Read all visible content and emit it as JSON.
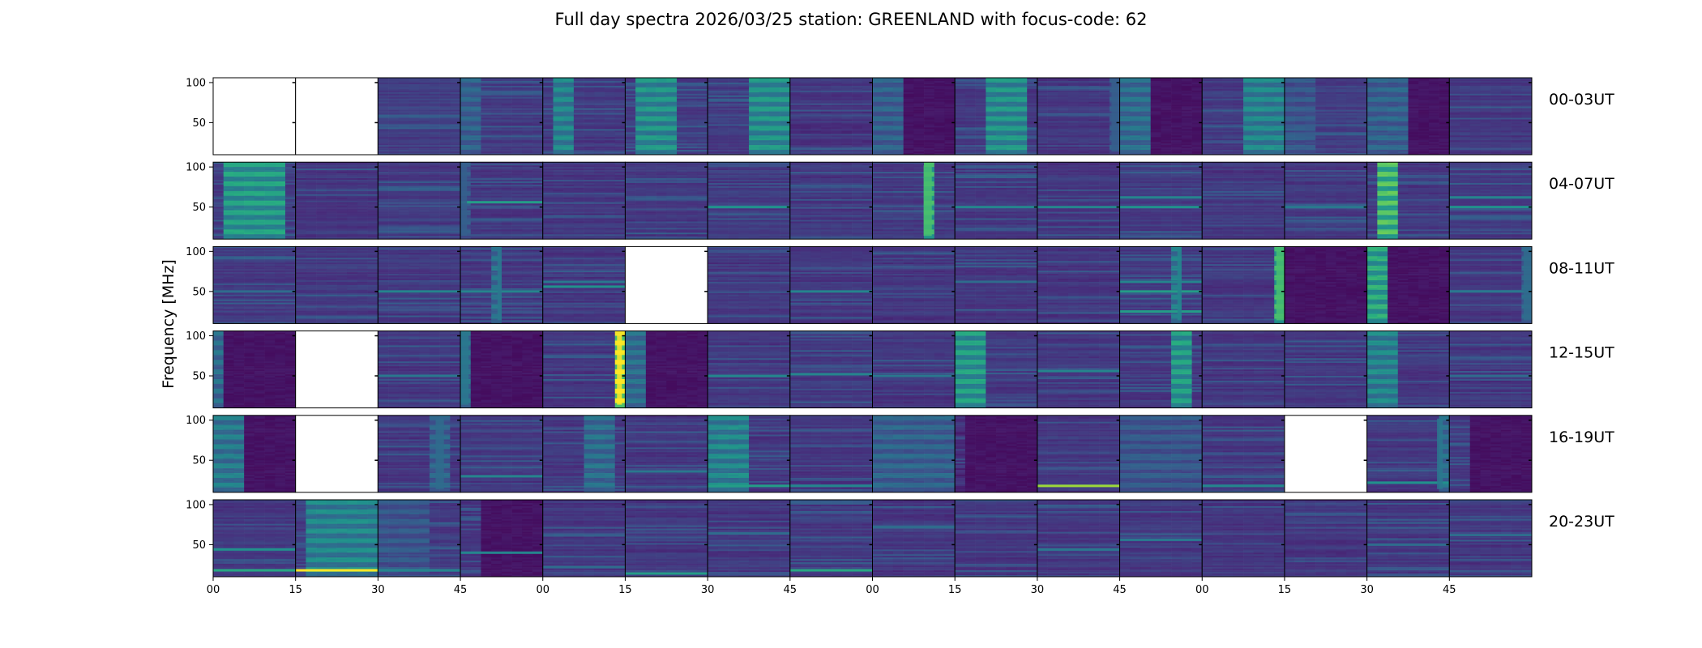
{
  "chart_data": {
    "type": "heatmap",
    "title": "Full day spectra 2026/03/25 station: GREENLAND with focus-code: 62",
    "xlabel": "",
    "ylabel": "Frequency [MHz]",
    "ylim": [
      10,
      106
    ],
    "yticks": [
      "100",
      "50"
    ],
    "ytick_values": [
      100,
      50
    ],
    "xtick_labels": [
      "00",
      "15",
      "30",
      "45",
      "00",
      "15",
      "30",
      "45",
      "00",
      "15",
      "30",
      "45",
      "00",
      "15",
      "30",
      "45"
    ],
    "colormap": "viridis",
    "colormap_stops": [
      "#440154",
      "#472d7b",
      "#3b528b",
      "#2c728e",
      "#21918c",
      "#28ae80",
      "#5ec962",
      "#addc30",
      "#fde725"
    ],
    "minutes_per_panel": 15,
    "rows": [
      {
        "label": "00-03UT",
        "panels": [
          {
            "blank": true
          },
          {
            "blank": true
          },
          {
            "base": 0.18,
            "bursts": []
          },
          {
            "base": 0.17,
            "bursts": [
              {
                "t0": 0.0,
                "t1": 0.25,
                "level": 0.35
              }
            ]
          },
          {
            "base": 0.16,
            "bursts": [
              {
                "t0": 0.15,
                "t1": 0.3,
                "level": 0.5
              }
            ]
          },
          {
            "base": 0.17,
            "bursts": [
              {
                "t0": 0.2,
                "t1": 0.65,
                "level": 0.55
              }
            ]
          },
          {
            "base": 0.17,
            "bursts": [
              {
                "t0": 0.5,
                "t1": 1.0,
                "level": 0.55
              }
            ]
          },
          {
            "base": 0.15,
            "bursts": []
          },
          {
            "base": 0.16,
            "bursts": [
              {
                "t0": 0.0,
                "t1": 0.3,
                "level": 0.35
              }
            ],
            "quiet": {
              "t0": 0.3,
              "t1": 1.0
            }
          },
          {
            "base": 0.17,
            "bursts": [
              {
                "t0": 0.4,
                "t1": 0.8,
                "level": 0.55
              }
            ]
          },
          {
            "base": 0.16,
            "bursts": [
              {
                "t0": 0.9,
                "t1": 1.0,
                "level": 0.3
              }
            ]
          },
          {
            "base": 0.16,
            "bursts": [
              {
                "t0": 0.0,
                "t1": 0.35,
                "level": 0.4
              }
            ],
            "quiet": {
              "t0": 0.35,
              "t1": 1.0
            }
          },
          {
            "base": 0.17,
            "bursts": [
              {
                "t0": 0.55,
                "t1": 1.0,
                "level": 0.5
              }
            ]
          },
          {
            "base": 0.18,
            "bursts": [
              {
                "t0": 0.0,
                "t1": 0.3,
                "level": 0.3
              }
            ]
          },
          {
            "base": 0.16,
            "bursts": [
              {
                "t0": 0.0,
                "t1": 0.5,
                "level": 0.35
              }
            ],
            "quiet": {
              "t0": 0.5,
              "t1": 1.0
            }
          },
          {
            "base": 0.16,
            "bursts": []
          }
        ]
      },
      {
        "label": "04-07UT",
        "panels": [
          {
            "base": 0.18,
            "bursts": [
              {
                "t0": 0.2,
                "t1": 0.85,
                "level": 0.6
              }
            ]
          },
          {
            "base": 0.16,
            "bursts": []
          },
          {
            "base": 0.17,
            "bursts": []
          },
          {
            "base": 0.16,
            "bursts": [
              {
                "t0": 0.0,
                "t1": 0.08,
                "level": 0.3
              }
            ],
            "bands": [
              {
                "f": 56,
                "level": 0.55
              }
            ]
          },
          {
            "base": 0.16,
            "bursts": []
          },
          {
            "base": 0.16,
            "bursts": []
          },
          {
            "base": 0.17,
            "bursts": [],
            "bands": [
              {
                "f": 50,
                "level": 0.5
              }
            ]
          },
          {
            "base": 0.16,
            "bursts": []
          },
          {
            "base": 0.17,
            "bursts": [
              {
                "t0": 0.62,
                "t1": 0.72,
                "level": 0.7
              }
            ]
          },
          {
            "base": 0.16,
            "bursts": [],
            "bands": [
              {
                "f": 50,
                "level": 0.45
              }
            ]
          },
          {
            "base": 0.16,
            "bursts": [],
            "bands": [
              {
                "f": 50,
                "level": 0.45
              }
            ]
          },
          {
            "base": 0.17,
            "bursts": [],
            "bands": [
              {
                "f": 62,
                "level": 0.45
              },
              {
                "f": 50,
                "level": 0.5
              }
            ]
          },
          {
            "base": 0.16,
            "bursts": []
          },
          {
            "base": 0.16,
            "bursts": [],
            "bands": [
              {
                "f": 50,
                "level": 0.4
              }
            ]
          },
          {
            "base": 0.16,
            "bursts": [
              {
                "t0": 0.2,
                "t1": 0.35,
                "level": 0.75
              }
            ]
          },
          {
            "base": 0.17,
            "bursts": [],
            "bands": [
              {
                "f": 62,
                "level": 0.45
              },
              {
                "f": 50,
                "level": 0.5
              }
            ]
          }
        ]
      },
      {
        "label": "08-11UT",
        "panels": [
          {
            "base": 0.17,
            "bursts": [],
            "bands": [
              {
                "f": 50,
                "level": 0.35
              }
            ]
          },
          {
            "base": 0.16,
            "bursts": []
          },
          {
            "base": 0.16,
            "bursts": [],
            "bands": [
              {
                "f": 50,
                "level": 0.45
              }
            ]
          },
          {
            "base": 0.16,
            "bursts": [
              {
                "t0": 0.45,
                "t1": 0.5,
                "level": 0.4
              }
            ],
            "bands": [
              {
                "f": 50,
                "level": 0.45
              }
            ]
          },
          {
            "base": 0.16,
            "bursts": [],
            "bands": [
              {
                "f": 62,
                "level": 0.4
              },
              {
                "f": 56,
                "level": 0.5
              }
            ]
          },
          {
            "blank": true
          },
          {
            "base": 0.16,
            "bursts": []
          },
          {
            "base": 0.16,
            "bursts": [],
            "bands": [
              {
                "f": 50,
                "level": 0.45
              }
            ]
          },
          {
            "base": 0.16,
            "bursts": []
          },
          {
            "base": 0.16,
            "bursts": [],
            "bands": [
              {
                "f": 62,
                "level": 0.35
              }
            ]
          },
          {
            "base": 0.16,
            "bursts": []
          },
          {
            "base": 0.17,
            "bursts": [
              {
                "t0": 0.7,
                "t1": 0.75,
                "level": 0.45
              }
            ],
            "bands": [
              {
                "f": 62,
                "level": 0.45
              },
              {
                "f": 50,
                "level": 0.55
              },
              {
                "f": 25,
                "level": 0.55
              }
            ]
          },
          {
            "base": 0.16,
            "bursts": [
              {
                "t0": 0.9,
                "t1": 1.0,
                "level": 0.7
              }
            ]
          },
          {
            "base": 0.1,
            "bursts": [],
            "quiet": {
              "t0": 0.0,
              "t1": 1.0
            }
          },
          {
            "base": 0.16,
            "bursts": [
              {
                "t0": 0.0,
                "t1": 0.2,
                "level": 0.65
              }
            ],
            "quiet": {
              "t0": 0.2,
              "t1": 1.0
            }
          },
          {
            "base": 0.16,
            "bursts": [
              {
                "t0": 0.9,
                "t1": 1.0,
                "level": 0.35
              }
            ],
            "bands": [
              {
                "f": 50,
                "level": 0.4
              }
            ]
          }
        ]
      },
      {
        "label": "12-15UT",
        "panels": [
          {
            "base": 0.15,
            "bursts": [
              {
                "t0": 0.0,
                "t1": 0.15,
                "level": 0.4
              }
            ],
            "quiet": {
              "t0": 0.15,
              "t1": 1.0
            }
          },
          {
            "blank": true
          },
          {
            "base": 0.16,
            "bursts": [],
            "bands": [
              {
                "f": 50,
                "level": 0.4
              }
            ]
          },
          {
            "base": 0.15,
            "bursts": [
              {
                "t0": 0.0,
                "t1": 0.1,
                "level": 0.4
              }
            ],
            "quiet": {
              "t0": 0.1,
              "t1": 1.0
            }
          },
          {
            "base": 0.16,
            "bursts": [
              {
                "t0": 0.9,
                "t1": 0.96,
                "level": 1.0
              }
            ]
          },
          {
            "base": 0.15,
            "bursts": [
              {
                "t0": 0.0,
                "t1": 0.2,
                "level": 0.4
              }
            ],
            "quiet": {
              "t0": 0.2,
              "t1": 1.0
            }
          },
          {
            "base": 0.16,
            "bursts": [],
            "bands": [
              {
                "f": 50,
                "level": 0.45
              }
            ]
          },
          {
            "base": 0.16,
            "bursts": [],
            "bands": [
              {
                "f": 52,
                "level": 0.45
              }
            ]
          },
          {
            "base": 0.16,
            "bursts": [],
            "bands": [
              {
                "f": 50,
                "level": 0.4
              }
            ]
          },
          {
            "base": 0.16,
            "bursts": [
              {
                "t0": 0.0,
                "t1": 0.3,
                "level": 0.6
              }
            ]
          },
          {
            "base": 0.16,
            "bursts": [],
            "bands": [
              {
                "f": 56,
                "level": 0.45
              }
            ]
          },
          {
            "base": 0.16,
            "bursts": [
              {
                "t0": 0.65,
                "t1": 0.85,
                "level": 0.6
              }
            ]
          },
          {
            "base": 0.16,
            "bursts": []
          },
          {
            "base": 0.16,
            "bursts": []
          },
          {
            "base": 0.16,
            "bursts": [
              {
                "t0": 0.0,
                "t1": 0.3,
                "level": 0.5
              }
            ]
          },
          {
            "base": 0.16,
            "bursts": [],
            "bands": [
              {
                "f": 50,
                "level": 0.35
              }
            ]
          }
        ]
      },
      {
        "label": "16-19UT",
        "panels": [
          {
            "base": 0.16,
            "bursts": [
              {
                "t0": 0.0,
                "t1": 0.35,
                "level": 0.45
              }
            ],
            "quiet": {
              "t0": 0.35,
              "t1": 1.0
            }
          },
          {
            "blank": true
          },
          {
            "base": 0.16,
            "bursts": [
              {
                "t0": 0.7,
                "t1": 0.8,
                "level": 0.35
              }
            ]
          },
          {
            "base": 0.16,
            "bursts": [],
            "bands": [
              {
                "f": 30,
                "level": 0.45
              }
            ]
          },
          {
            "base": 0.16,
            "bursts": [
              {
                "t0": 0.5,
                "t1": 0.85,
                "level": 0.4
              }
            ]
          },
          {
            "base": 0.16,
            "bursts": [],
            "bands": [
              {
                "f": 36,
                "level": 0.4
              }
            ]
          },
          {
            "base": 0.16,
            "bursts": [
              {
                "t0": 0.0,
                "t1": 0.45,
                "level": 0.5
              }
            ],
            "bands": [
              {
                "f": 18,
                "level": 0.55
              }
            ]
          },
          {
            "base": 0.16,
            "bursts": [],
            "bands": [
              {
                "f": 18,
                "level": 0.45
              }
            ]
          },
          {
            "base": 0.17,
            "bursts": [
              {
                "t0": 0.0,
                "t1": 1.0,
                "level": 0.35
              }
            ]
          },
          {
            "base": 0.12,
            "bursts": [],
            "quiet": {
              "t0": 0.1,
              "t1": 1.0
            }
          },
          {
            "base": 0.16,
            "bursts": [],
            "bands": [
              {
                "f": 18,
                "level": 0.85
              }
            ]
          },
          {
            "base": 0.17,
            "bursts": [
              {
                "t0": 0.0,
                "t1": 1.0,
                "level": 0.3
              }
            ]
          },
          {
            "base": 0.16,
            "bursts": [],
            "bands": [
              {
                "f": 18,
                "level": 0.45
              }
            ]
          },
          {
            "blank": true
          },
          {
            "base": 0.16,
            "bursts": [
              {
                "t0": 0.85,
                "t1": 0.92,
                "level": 0.4
              }
            ],
            "bands": [
              {
                "f": 22,
                "level": 0.5
              }
            ]
          },
          {
            "base": 0.16,
            "bursts": [],
            "quiet": {
              "t0": 0.3,
              "t1": 1.0
            }
          }
        ]
      },
      {
        "label": "20-23UT",
        "panels": [
          {
            "base": 0.16,
            "bursts": [],
            "bands": [
              {
                "f": 44,
                "level": 0.5
              },
              {
                "f": 18,
                "level": 0.6
              }
            ]
          },
          {
            "base": 0.18,
            "bursts": [
              {
                "t0": 0.2,
                "t1": 1.0,
                "level": 0.5
              }
            ],
            "bands": [
              {
                "f": 18,
                "level": 1.0
              }
            ]
          },
          {
            "base": 0.17,
            "bursts": [
              {
                "t0": 0.0,
                "t1": 0.6,
                "level": 0.3
              }
            ],
            "bands": [
              {
                "f": 18,
                "level": 0.45
              }
            ]
          },
          {
            "base": 0.15,
            "bursts": [],
            "quiet": {
              "t0": 0.2,
              "t1": 1.0
            },
            "bands": [
              {
                "f": 40,
                "level": 0.45
              }
            ]
          },
          {
            "base": 0.16,
            "bursts": [],
            "bands": [
              {
                "f": 22,
                "level": 0.35
              }
            ]
          },
          {
            "base": 0.16,
            "bursts": [],
            "bands": [
              {
                "f": 14,
                "level": 0.55
              }
            ]
          },
          {
            "base": 0.16,
            "bursts": [],
            "bands": [
              {
                "f": 64,
                "level": 0.35
              }
            ]
          },
          {
            "base": 0.16,
            "bursts": [],
            "bands": [
              {
                "f": 18,
                "level": 0.6
              }
            ]
          },
          {
            "base": 0.16,
            "bursts": [],
            "bands": [
              {
                "f": 72,
                "level": 0.35
              }
            ]
          },
          {
            "base": 0.16,
            "bursts": []
          },
          {
            "base": 0.16,
            "bursts": [],
            "bands": [
              {
                "f": 44,
                "level": 0.4
              }
            ]
          },
          {
            "base": 0.16,
            "bursts": [],
            "bands": [
              {
                "f": 56,
                "level": 0.4
              }
            ]
          },
          {
            "base": 0.16,
            "bursts": []
          },
          {
            "base": 0.16,
            "bursts": []
          },
          {
            "base": 0.16,
            "bursts": [],
            "bands": [
              {
                "f": 50,
                "level": 0.35
              }
            ]
          },
          {
            "base": 0.16,
            "bursts": [],
            "bands": [
              {
                "f": 62,
                "level": 0.35
              }
            ]
          }
        ]
      }
    ]
  }
}
